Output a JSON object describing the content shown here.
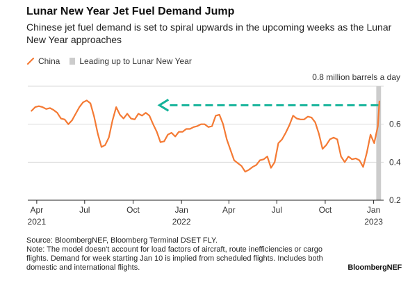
{
  "colors": {
    "line": "#f47a34",
    "highlight_bar": "#cccccc",
    "arrow": "#14b39a",
    "grid": "#d9d9d9",
    "axis": "#222222"
  },
  "footnote": {
    "source": "Source: BloombergNEF, Bloomberg Terminal DSET FLY.",
    "note": "Note: The model doesn't account for load factors of aircraft, route inefficiencies or cargo flights. Demand for week starting Jan 10 is implied from scheduled flights. Includes both domestic and international flights."
  },
  "brand": "BloombergNEF",
  "chart_data": {
    "type": "line",
    "title": "Lunar New Year Jet Fuel Demand Jump",
    "subtitle": "Chinese jet fuel demand is set to spiral upwards in the upcoming weeks as the Lunar New Year approaches",
    "unit_label": "0.8 million barrels a day",
    "legend": [
      {
        "label": "China",
        "kind": "line"
      },
      {
        "label": "Leading up to Lunar New Year",
        "kind": "box"
      }
    ],
    "y_axis": {
      "range": [
        0.2,
        0.8
      ],
      "ticks": [
        {
          "value": 0.2,
          "label": "0.2"
        },
        {
          "value": 0.4,
          "label": "0.4"
        },
        {
          "value": 0.6,
          "label": "0.6"
        },
        {
          "value": 0.8,
          "label": ""
        }
      ],
      "position": "right",
      "grid": true
    },
    "x_axis": {
      "range": [
        "2021-03-15",
        "2023-01-20"
      ],
      "ticks": [
        {
          "date": "2021-04-01",
          "label": "Apr",
          "year": "2021"
        },
        {
          "date": "2021-07-01",
          "label": "Jul",
          "year": ""
        },
        {
          "date": "2021-10-01",
          "label": "Oct",
          "year": ""
        },
        {
          "date": "2022-01-01",
          "label": "Jan",
          "year": "2022"
        },
        {
          "date": "2022-04-01",
          "label": "Apr",
          "year": ""
        },
        {
          "date": "2022-07-01",
          "label": "Jul",
          "year": ""
        },
        {
          "date": "2022-10-01",
          "label": "Oct",
          "year": ""
        },
        {
          "date": "2023-01-01",
          "label": "Jan",
          "year": "2023"
        }
      ]
    },
    "highlight": {
      "start": "2023-01-06",
      "end": "2023-01-15"
    },
    "arrow": {
      "from": "2023-01-10",
      "to": "2021-11-20",
      "y": 0.7
    },
    "series": [
      {
        "name": "China",
        "points": [
          [
            "2021-03-22",
            0.67
          ],
          [
            "2021-03-29",
            0.69
          ],
          [
            "2021-04-05",
            0.695
          ],
          [
            "2021-04-12",
            0.69
          ],
          [
            "2021-04-19",
            0.68
          ],
          [
            "2021-04-26",
            0.685
          ],
          [
            "2021-05-03",
            0.675
          ],
          [
            "2021-05-10",
            0.66
          ],
          [
            "2021-05-17",
            0.63
          ],
          [
            "2021-05-24",
            0.625
          ],
          [
            "2021-05-31",
            0.6
          ],
          [
            "2021-06-07",
            0.62
          ],
          [
            "2021-06-14",
            0.655
          ],
          [
            "2021-06-21",
            0.69
          ],
          [
            "2021-06-28",
            0.715
          ],
          [
            "2021-07-05",
            0.725
          ],
          [
            "2021-07-12",
            0.71
          ],
          [
            "2021-07-19",
            0.64
          ],
          [
            "2021-07-26",
            0.55
          ],
          [
            "2021-08-02",
            0.48
          ],
          [
            "2021-08-09",
            0.49
          ],
          [
            "2021-08-16",
            0.53
          ],
          [
            "2021-08-23",
            0.62
          ],
          [
            "2021-08-30",
            0.69
          ],
          [
            "2021-09-06",
            0.65
          ],
          [
            "2021-09-13",
            0.63
          ],
          [
            "2021-09-20",
            0.655
          ],
          [
            "2021-09-27",
            0.63
          ],
          [
            "2021-10-04",
            0.625
          ],
          [
            "2021-10-11",
            0.655
          ],
          [
            "2021-10-18",
            0.645
          ],
          [
            "2021-10-25",
            0.66
          ],
          [
            "2021-11-01",
            0.645
          ],
          [
            "2021-11-08",
            0.6
          ],
          [
            "2021-11-15",
            0.56
          ],
          [
            "2021-11-22",
            0.505
          ],
          [
            "2021-11-29",
            0.51
          ],
          [
            "2021-12-06",
            0.545
          ],
          [
            "2021-12-13",
            0.555
          ],
          [
            "2021-12-20",
            0.535
          ],
          [
            "2021-12-27",
            0.56
          ],
          [
            "2022-01-03",
            0.56
          ],
          [
            "2022-01-10",
            0.575
          ],
          [
            "2022-01-17",
            0.575
          ],
          [
            "2022-01-24",
            0.585
          ],
          [
            "2022-01-31",
            0.59
          ],
          [
            "2022-02-07",
            0.6
          ],
          [
            "2022-02-14",
            0.6
          ],
          [
            "2022-02-21",
            0.585
          ],
          [
            "2022-02-28",
            0.59
          ],
          [
            "2022-03-07",
            0.645
          ],
          [
            "2022-03-14",
            0.65
          ],
          [
            "2022-03-21",
            0.6
          ],
          [
            "2022-03-28",
            0.52
          ],
          [
            "2022-04-04",
            0.465
          ],
          [
            "2022-04-11",
            0.41
          ],
          [
            "2022-04-18",
            0.395
          ],
          [
            "2022-04-25",
            0.38
          ],
          [
            "2022-05-02",
            0.35
          ],
          [
            "2022-05-09",
            0.36
          ],
          [
            "2022-05-16",
            0.375
          ],
          [
            "2022-05-23",
            0.385
          ],
          [
            "2022-05-30",
            0.41
          ],
          [
            "2022-06-06",
            0.415
          ],
          [
            "2022-06-13",
            0.43
          ],
          [
            "2022-06-20",
            0.37
          ],
          [
            "2022-06-27",
            0.4
          ],
          [
            "2022-07-04",
            0.5
          ],
          [
            "2022-07-11",
            0.52
          ],
          [
            "2022-07-18",
            0.555
          ],
          [
            "2022-07-25",
            0.595
          ],
          [
            "2022-08-01",
            0.645
          ],
          [
            "2022-08-08",
            0.63
          ],
          [
            "2022-08-15",
            0.625
          ],
          [
            "2022-08-22",
            0.625
          ],
          [
            "2022-08-29",
            0.64
          ],
          [
            "2022-09-05",
            0.635
          ],
          [
            "2022-09-12",
            0.61
          ],
          [
            "2022-09-19",
            0.55
          ],
          [
            "2022-09-26",
            0.47
          ],
          [
            "2022-10-03",
            0.49
          ],
          [
            "2022-10-10",
            0.52
          ],
          [
            "2022-10-17",
            0.53
          ],
          [
            "2022-10-24",
            0.52
          ],
          [
            "2022-10-31",
            0.43
          ],
          [
            "2022-11-07",
            0.4
          ],
          [
            "2022-11-14",
            0.43
          ],
          [
            "2022-11-21",
            0.415
          ],
          [
            "2022-11-28",
            0.42
          ],
          [
            "2022-12-05",
            0.41
          ],
          [
            "2022-12-12",
            0.375
          ],
          [
            "2022-12-19",
            0.45
          ],
          [
            "2022-12-26",
            0.545
          ],
          [
            "2023-01-02",
            0.5
          ],
          [
            "2023-01-09",
            0.59
          ],
          [
            "2023-01-12",
            0.72
          ]
        ]
      }
    ]
  }
}
